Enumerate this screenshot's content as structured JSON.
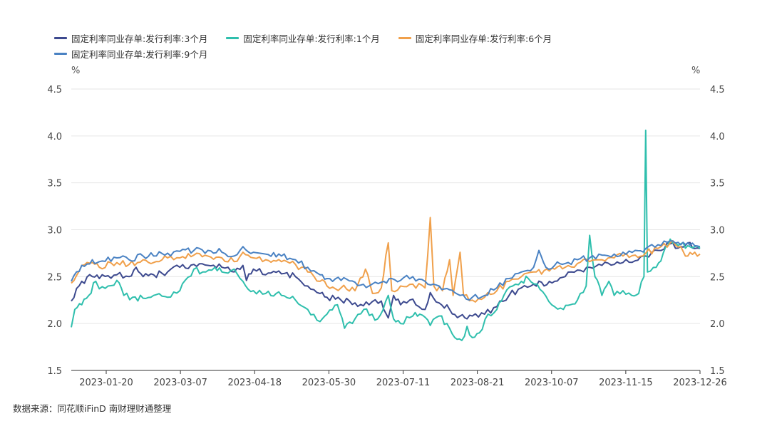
{
  "chart_data": {
    "type": "line",
    "yunit_left": "%",
    "yunit_right": "%",
    "ylim": [
      1.5,
      4.5
    ],
    "yticks": [
      "1.5",
      "2.0",
      "2.5",
      "3.0",
      "3.5",
      "4.0",
      "4.5"
    ],
    "x_tick_labels": [
      "2023-01-20",
      "2023-03-07",
      "2023-04-18",
      "2023-05-30",
      "2023-07-11",
      "2023-08-21",
      "2023-10-07",
      "2023-11-15",
      "2023-12-26"
    ],
    "x_range": [
      "2023-01-04",
      "2023-12-29"
    ],
    "grid": true,
    "legend_position": "top-left",
    "series": [
      {
        "name": "固定利率同业存单:发行利率:3个月",
        "color": "#3d4a8f",
        "points": [
          [
            "2023-01-04",
            2.24
          ],
          [
            "2023-01-10",
            2.45
          ],
          [
            "2023-01-16",
            2.5
          ],
          [
            "2023-01-20",
            2.48
          ],
          [
            "2023-01-30",
            2.52
          ],
          [
            "2023-02-06",
            2.5
          ],
          [
            "2023-02-10",
            2.6
          ],
          [
            "2023-02-14",
            2.5
          ],
          [
            "2023-02-20",
            2.52
          ],
          [
            "2023-02-28",
            2.55
          ],
          [
            "2023-03-07",
            2.6
          ],
          [
            "2023-03-15",
            2.63
          ],
          [
            "2023-03-23",
            2.62
          ],
          [
            "2023-03-31",
            2.6
          ],
          [
            "2023-04-07",
            2.55
          ],
          [
            "2023-04-12",
            2.62
          ],
          [
            "2023-04-14",
            2.46
          ],
          [
            "2023-04-18",
            2.58
          ],
          [
            "2023-04-25",
            2.52
          ],
          [
            "2023-05-04",
            2.53
          ],
          [
            "2023-05-12",
            2.5
          ],
          [
            "2023-05-19",
            2.4
          ],
          [
            "2023-05-26",
            2.32
          ],
          [
            "2023-05-30",
            2.28
          ],
          [
            "2023-06-07",
            2.25
          ],
          [
            "2023-06-15",
            2.22
          ],
          [
            "2023-06-23",
            2.2
          ],
          [
            "2023-06-30",
            2.24
          ],
          [
            "2023-07-04",
            2.06
          ],
          [
            "2023-07-07",
            2.3
          ],
          [
            "2023-07-11",
            2.2
          ],
          [
            "2023-07-18",
            2.26
          ],
          [
            "2023-07-25",
            2.15
          ],
          [
            "2023-07-28",
            2.33
          ],
          [
            "2023-08-02",
            2.22
          ],
          [
            "2023-08-08",
            2.15
          ],
          [
            "2023-08-14",
            2.08
          ],
          [
            "2023-08-18",
            2.05
          ],
          [
            "2023-08-21",
            2.08
          ],
          [
            "2023-08-28",
            2.1
          ],
          [
            "2023-09-04",
            2.18
          ],
          [
            "2023-09-11",
            2.3
          ],
          [
            "2023-09-18",
            2.38
          ],
          [
            "2023-09-25",
            2.42
          ],
          [
            "2023-10-07",
            2.45
          ],
          [
            "2023-10-13",
            2.5
          ],
          [
            "2023-10-20",
            2.57
          ],
          [
            "2023-10-27",
            2.6
          ],
          [
            "2023-11-03",
            2.62
          ],
          [
            "2023-11-10",
            2.63
          ],
          [
            "2023-11-15",
            2.65
          ],
          [
            "2023-11-22",
            2.67
          ],
          [
            "2023-11-28",
            2.72
          ],
          [
            "2023-12-05",
            2.78
          ],
          [
            "2023-12-12",
            2.85
          ],
          [
            "2023-12-18",
            2.82
          ],
          [
            "2023-12-22",
            2.86
          ],
          [
            "2023-12-26",
            2.8
          ],
          [
            "2023-12-29",
            2.8
          ]
        ]
      },
      {
        "name": "固定利率同业存单:发行利率:1个月",
        "color": "#2fbfad",
        "points": [
          [
            "2023-01-04",
            1.96
          ],
          [
            "2023-01-06",
            2.15
          ],
          [
            "2023-01-10",
            2.2
          ],
          [
            "2023-01-14",
            2.3
          ],
          [
            "2023-01-18",
            2.45
          ],
          [
            "2023-01-20",
            2.37
          ],
          [
            "2023-01-25",
            2.4
          ],
          [
            "2023-01-30",
            2.46
          ],
          [
            "2023-02-03",
            2.3
          ],
          [
            "2023-02-08",
            2.28
          ],
          [
            "2023-02-14",
            2.27
          ],
          [
            "2023-02-20",
            2.3
          ],
          [
            "2023-02-28",
            2.28
          ],
          [
            "2023-03-07",
            2.35
          ],
          [
            "2023-03-10",
            2.46
          ],
          [
            "2023-03-15",
            2.58
          ],
          [
            "2023-03-20",
            2.55
          ],
          [
            "2023-03-27",
            2.6
          ],
          [
            "2023-03-31",
            2.55
          ],
          [
            "2023-04-07",
            2.58
          ],
          [
            "2023-04-12",
            2.45
          ],
          [
            "2023-04-18",
            2.35
          ],
          [
            "2023-04-25",
            2.32
          ],
          [
            "2023-05-04",
            2.3
          ],
          [
            "2023-05-12",
            2.25
          ],
          [
            "2023-05-19",
            2.15
          ],
          [
            "2023-05-26",
            2.02
          ],
          [
            "2023-05-30",
            2.1
          ],
          [
            "2023-06-05",
            2.2
          ],
          [
            "2023-06-09",
            1.95
          ],
          [
            "2023-06-15",
            2.05
          ],
          [
            "2023-06-20",
            2.15
          ],
          [
            "2023-06-28",
            2.05
          ],
          [
            "2023-07-04",
            2.3
          ],
          [
            "2023-07-07",
            2.05
          ],
          [
            "2023-07-11",
            2.0
          ],
          [
            "2023-07-18",
            2.08
          ],
          [
            "2023-07-22",
            2.1
          ],
          [
            "2023-07-28",
            1.98
          ],
          [
            "2023-08-02",
            2.08
          ],
          [
            "2023-08-08",
            1.95
          ],
          [
            "2023-08-11",
            1.85
          ],
          [
            "2023-08-15",
            1.82
          ],
          [
            "2023-08-18",
            1.97
          ],
          [
            "2023-08-21",
            1.85
          ],
          [
            "2023-08-25",
            1.9
          ],
          [
            "2023-08-30",
            2.1
          ],
          [
            "2023-09-04",
            2.15
          ],
          [
            "2023-09-08",
            2.3
          ],
          [
            "2023-09-13",
            2.4
          ],
          [
            "2023-09-18",
            2.45
          ],
          [
            "2023-09-22",
            2.48
          ],
          [
            "2023-09-27",
            2.42
          ],
          [
            "2023-10-07",
            2.18
          ],
          [
            "2023-10-12",
            2.15
          ],
          [
            "2023-10-16",
            2.2
          ],
          [
            "2023-10-20",
            2.25
          ],
          [
            "2023-10-25",
            2.4
          ],
          [
            "2023-10-27",
            2.94
          ],
          [
            "2023-10-30",
            2.5
          ],
          [
            "2023-11-03",
            2.3
          ],
          [
            "2023-11-07",
            2.45
          ],
          [
            "2023-11-10",
            2.3
          ],
          [
            "2023-11-15",
            2.35
          ],
          [
            "2023-11-20",
            2.3
          ],
          [
            "2023-11-24",
            2.32
          ],
          [
            "2023-11-27",
            2.5
          ],
          [
            "2023-11-28",
            4.06
          ],
          [
            "2023-11-29",
            2.55
          ],
          [
            "2023-12-04",
            2.6
          ],
          [
            "2023-12-08",
            2.75
          ],
          [
            "2023-12-12",
            2.9
          ],
          [
            "2023-12-18",
            2.85
          ],
          [
            "2023-12-22",
            2.83
          ],
          [
            "2023-12-26",
            2.82
          ],
          [
            "2023-12-29",
            2.8
          ]
        ]
      },
      {
        "name": "固定利率同业存单:发行利率:6个月",
        "color": "#f0a04b",
        "points": [
          [
            "2023-01-04",
            2.43
          ],
          [
            "2023-01-10",
            2.62
          ],
          [
            "2023-01-16",
            2.65
          ],
          [
            "2023-01-20",
            2.6
          ],
          [
            "2023-01-30",
            2.65
          ],
          [
            "2023-02-06",
            2.63
          ],
          [
            "2023-02-14",
            2.68
          ],
          [
            "2023-02-20",
            2.65
          ],
          [
            "2023-02-28",
            2.7
          ],
          [
            "2023-03-07",
            2.7
          ],
          [
            "2023-03-15",
            2.73
          ],
          [
            "2023-03-23",
            2.72
          ],
          [
            "2023-03-31",
            2.7
          ],
          [
            "2023-04-07",
            2.66
          ],
          [
            "2023-04-12",
            2.76
          ],
          [
            "2023-04-18",
            2.7
          ],
          [
            "2023-04-25",
            2.68
          ],
          [
            "2023-05-04",
            2.66
          ],
          [
            "2023-05-12",
            2.63
          ],
          [
            "2023-05-19",
            2.55
          ],
          [
            "2023-05-26",
            2.45
          ],
          [
            "2023-05-30",
            2.4
          ],
          [
            "2023-06-07",
            2.38
          ],
          [
            "2023-06-15",
            2.35
          ],
          [
            "2023-06-21",
            2.58
          ],
          [
            "2023-06-25",
            2.32
          ],
          [
            "2023-06-30",
            2.38
          ],
          [
            "2023-07-04",
            2.86
          ],
          [
            "2023-07-06",
            2.35
          ],
          [
            "2023-07-11",
            2.4
          ],
          [
            "2023-07-18",
            2.42
          ],
          [
            "2023-07-25",
            2.38
          ],
          [
            "2023-07-28",
            3.13
          ],
          [
            "2023-07-30",
            2.4
          ],
          [
            "2023-08-04",
            2.35
          ],
          [
            "2023-08-08",
            2.68
          ],
          [
            "2023-08-10",
            2.3
          ],
          [
            "2023-08-14",
            2.76
          ],
          [
            "2023-08-16",
            2.3
          ],
          [
            "2023-08-21",
            2.25
          ],
          [
            "2023-08-28",
            2.28
          ],
          [
            "2023-09-04",
            2.35
          ],
          [
            "2023-09-11",
            2.45
          ],
          [
            "2023-09-18",
            2.5
          ],
          [
            "2023-09-25",
            2.55
          ],
          [
            "2023-10-07",
            2.58
          ],
          [
            "2023-10-13",
            2.6
          ],
          [
            "2023-10-20",
            2.64
          ],
          [
            "2023-10-27",
            2.66
          ],
          [
            "2023-11-03",
            2.68
          ],
          [
            "2023-11-10",
            2.7
          ],
          [
            "2023-11-15",
            2.72
          ],
          [
            "2023-11-22",
            2.73
          ],
          [
            "2023-11-28",
            2.75
          ],
          [
            "2023-12-05",
            2.8
          ],
          [
            "2023-12-12",
            2.86
          ],
          [
            "2023-12-18",
            2.82
          ],
          [
            "2023-12-22",
            2.72
          ],
          [
            "2023-12-26",
            2.76
          ],
          [
            "2023-12-29",
            2.74
          ]
        ]
      },
      {
        "name": "固定利率同业存单:发行利率:9个月",
        "color": "#4a82c3",
        "points": [
          [
            "2023-01-04",
            2.45
          ],
          [
            "2023-01-10",
            2.62
          ],
          [
            "2023-01-16",
            2.68
          ],
          [
            "2023-01-20",
            2.66
          ],
          [
            "2023-01-30",
            2.7
          ],
          [
            "2023-02-06",
            2.68
          ],
          [
            "2023-02-14",
            2.72
          ],
          [
            "2023-02-20",
            2.72
          ],
          [
            "2023-02-28",
            2.75
          ],
          [
            "2023-03-07",
            2.77
          ],
          [
            "2023-03-15",
            2.78
          ],
          [
            "2023-03-23",
            2.78
          ],
          [
            "2023-03-31",
            2.76
          ],
          [
            "2023-04-07",
            2.72
          ],
          [
            "2023-04-12",
            2.82
          ],
          [
            "2023-04-18",
            2.76
          ],
          [
            "2023-04-25",
            2.74
          ],
          [
            "2023-05-04",
            2.72
          ],
          [
            "2023-05-12",
            2.68
          ],
          [
            "2023-05-19",
            2.6
          ],
          [
            "2023-05-26",
            2.52
          ],
          [
            "2023-05-30",
            2.48
          ],
          [
            "2023-06-07",
            2.46
          ],
          [
            "2023-06-15",
            2.44
          ],
          [
            "2023-06-23",
            2.4
          ],
          [
            "2023-06-30",
            2.44
          ],
          [
            "2023-07-06",
            2.48
          ],
          [
            "2023-07-11",
            2.46
          ],
          [
            "2023-07-18",
            2.5
          ],
          [
            "2023-07-25",
            2.45
          ],
          [
            "2023-08-02",
            2.4
          ],
          [
            "2023-08-08",
            2.36
          ],
          [
            "2023-08-14",
            2.3
          ],
          [
            "2023-08-21",
            2.28
          ],
          [
            "2023-08-28",
            2.3
          ],
          [
            "2023-09-04",
            2.38
          ],
          [
            "2023-09-11",
            2.48
          ],
          [
            "2023-09-18",
            2.55
          ],
          [
            "2023-09-25",
            2.6
          ],
          [
            "2023-09-28",
            2.78
          ],
          [
            "2023-10-02",
            2.6
          ],
          [
            "2023-10-07",
            2.62
          ],
          [
            "2023-10-13",
            2.64
          ],
          [
            "2023-10-20",
            2.68
          ],
          [
            "2023-10-27",
            2.7
          ],
          [
            "2023-11-03",
            2.73
          ],
          [
            "2023-11-10",
            2.74
          ],
          [
            "2023-11-15",
            2.76
          ],
          [
            "2023-11-22",
            2.78
          ],
          [
            "2023-11-28",
            2.8
          ],
          [
            "2023-12-05",
            2.84
          ],
          [
            "2023-12-12",
            2.88
          ],
          [
            "2023-12-18",
            2.84
          ],
          [
            "2023-12-22",
            2.86
          ],
          [
            "2023-12-26",
            2.83
          ],
          [
            "2023-12-29",
            2.82
          ]
        ]
      }
    ]
  },
  "source": "数据来源：同花顺iFinD 南财理财通整理"
}
